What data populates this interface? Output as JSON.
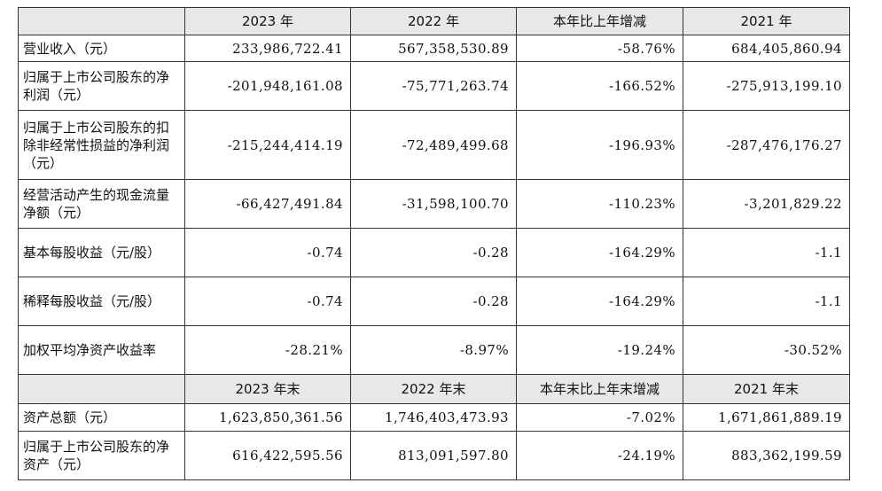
{
  "header1": {
    "blank": "",
    "cols": [
      "2023 年",
      "2022 年",
      "本年比上年增减",
      "2021 年"
    ]
  },
  "rows1": [
    {
      "label": "营业收入（元）",
      "values": [
        "233,986,722.41",
        "567,358,530.89",
        "-58.76%",
        "684,405,860.94"
      ]
    },
    {
      "label": "归属于上市公司股东的净利润（元）",
      "values": [
        "-201,948,161.08",
        "-75,771,263.74",
        "-166.52%",
        "-275,913,199.10"
      ]
    },
    {
      "label": "归属于上市公司股东的扣除非经常性损益的净利润（元）",
      "values": [
        "-215,244,414.19",
        "-72,489,499.68",
        "-196.93%",
        "-287,476,176.27"
      ]
    },
    {
      "label": "经营活动产生的现金流量净额（元）",
      "values": [
        "-66,427,491.84",
        "-31,598,100.70",
        "-110.23%",
        "-3,201,829.22"
      ]
    },
    {
      "label": "基本每股收益（元/股）",
      "values": [
        "-0.74",
        "-0.28",
        "-164.29%",
        "-1.1"
      ]
    },
    {
      "label": "稀释每股收益（元/股）",
      "values": [
        "-0.74",
        "-0.28",
        "-164.29%",
        "-1.1"
      ]
    },
    {
      "label": "加权平均净资产收益率",
      "values": [
        "-28.21%",
        "-8.97%",
        "-19.24%",
        "-30.52%"
      ]
    }
  ],
  "header2": {
    "blank": "",
    "cols": [
      "2023 年末",
      "2022 年末",
      "本年末比上年末增减",
      "2021 年末"
    ]
  },
  "rows2": [
    {
      "label": "资产总额（元）",
      "values": [
        "1,623,850,361.56",
        "1,746,403,473.93",
        "-7.02%",
        "1,671,861,889.19"
      ]
    },
    {
      "label": "归属于上市公司股东的净资产（元）",
      "values": [
        "616,422,595.56",
        "813,091,597.80",
        "-24.19%",
        "883,362,199.59"
      ]
    }
  ]
}
